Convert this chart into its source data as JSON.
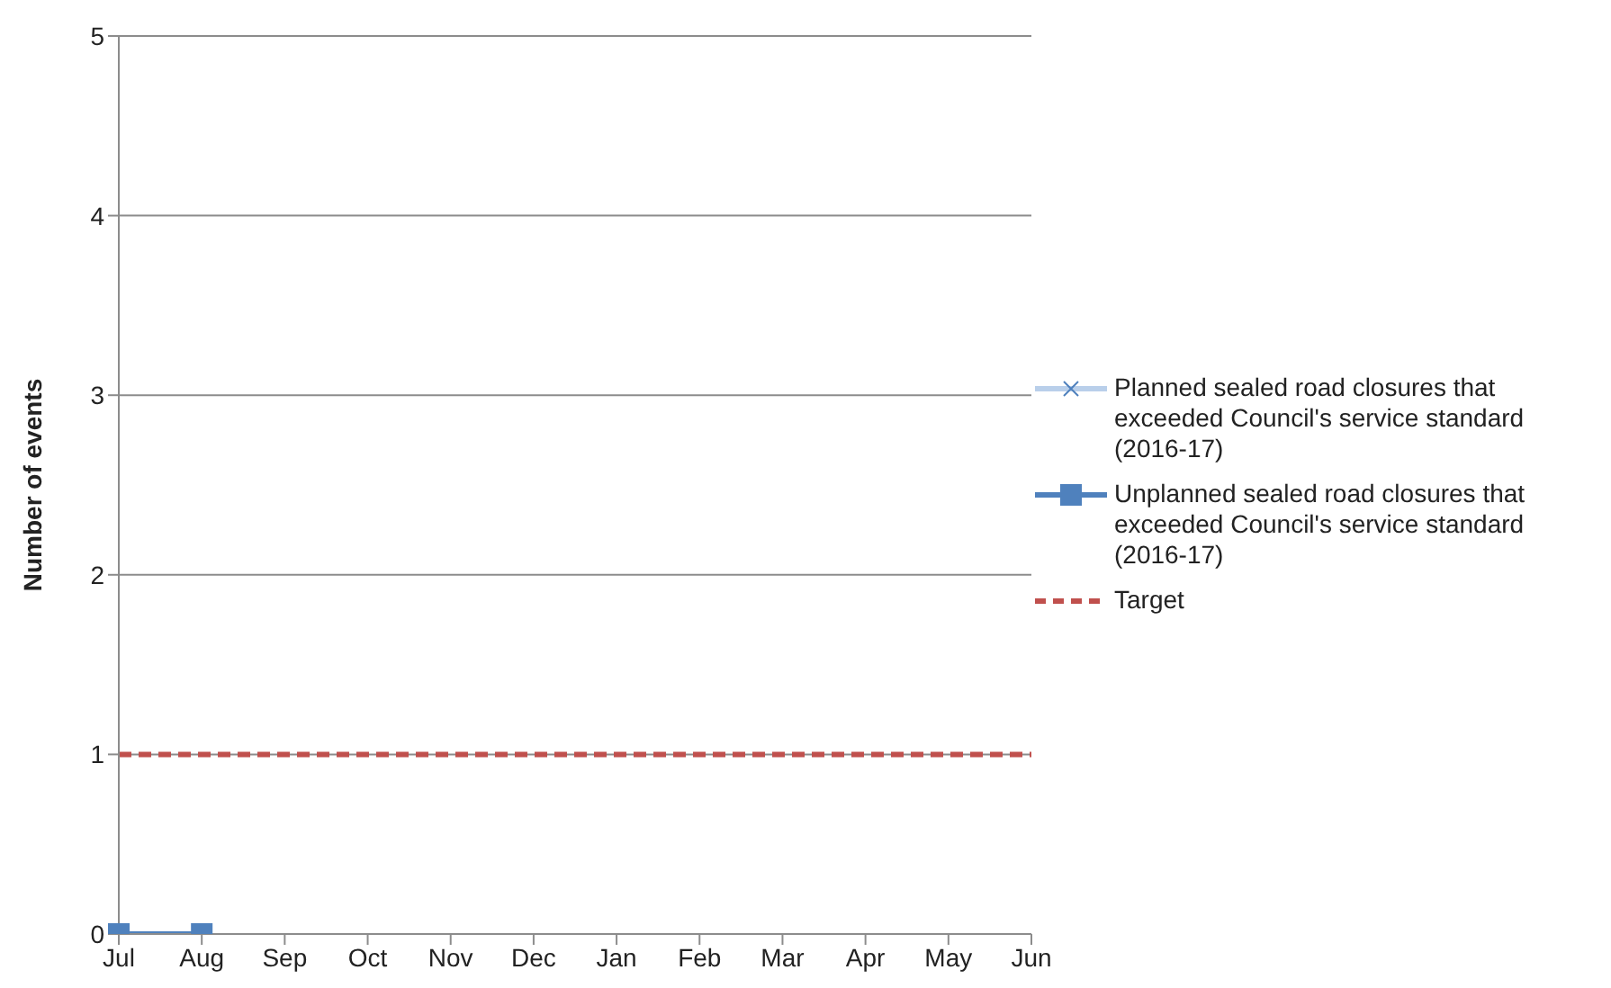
{
  "chart_data": {
    "type": "line",
    "ylabel": "Number of events",
    "categories": [
      "Jul",
      "Aug",
      "Sep",
      "Oct",
      "Nov",
      "Dec",
      "Jan",
      "Feb",
      "Mar",
      "Apr",
      "May",
      "Jun"
    ],
    "series": [
      {
        "name": "Planned sealed road closures that exceeded Council's service standard (2016-17)",
        "color": "#b9cfea",
        "marker": "cross",
        "values": [
          null,
          null,
          null,
          null,
          null,
          null,
          null,
          null,
          null,
          null,
          null,
          null
        ]
      },
      {
        "name": "Unplanned sealed road closures that exceeded Council's service standard (2016-17)",
        "color": "#4f81bd",
        "marker": "square",
        "values": [
          0,
          0,
          null,
          null,
          null,
          null,
          null,
          null,
          null,
          null,
          null,
          null
        ]
      },
      {
        "name": "Target",
        "color": "#c0504d",
        "marker": "none",
        "line_style": "dashed",
        "values": [
          1,
          1,
          1,
          1,
          1,
          1,
          1,
          1,
          1,
          1,
          1,
          1
        ]
      }
    ],
    "ylim": [
      0,
      5
    ],
    "yticks": [
      0,
      1,
      2,
      3,
      4,
      5
    ],
    "grid": "y",
    "legend": "right"
  }
}
